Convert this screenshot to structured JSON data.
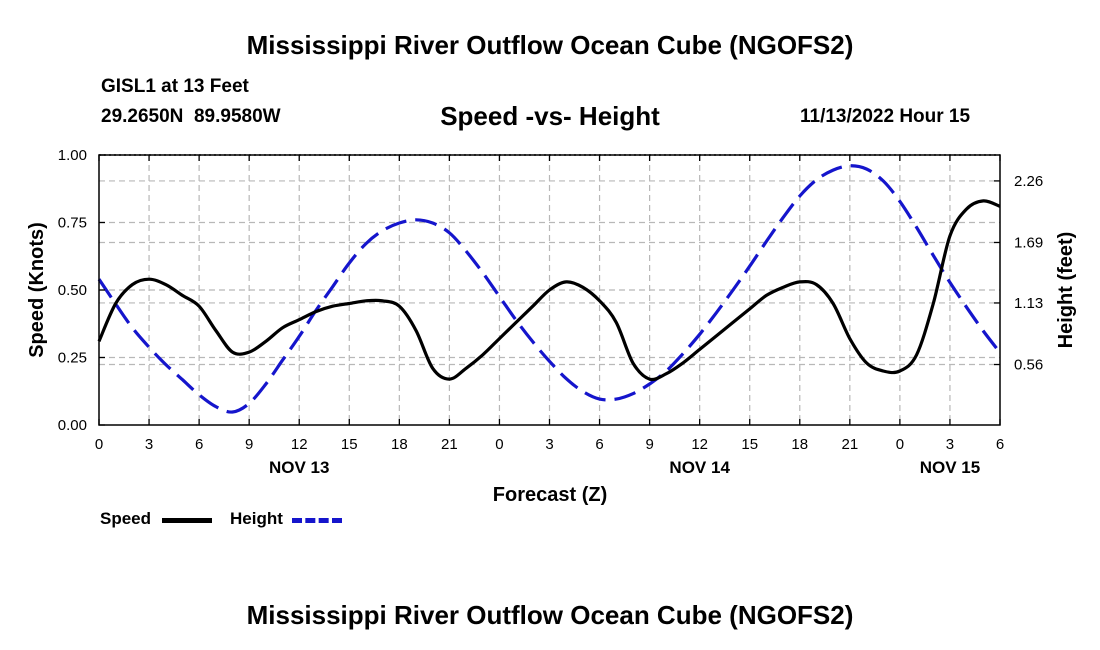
{
  "page_title": "Mississippi River Outflow Ocean Cube (NGOFS2)",
  "station": {
    "name": "GISL1 at 13 Feet",
    "coords": "29.2650N  89.9580W"
  },
  "run_time": "11/13/2022 Hour 15",
  "footer_title": "Mississippi River Outflow Ocean Cube (NGOFS2)",
  "legend": [
    {
      "label": "Speed",
      "color": "#000000"
    },
    {
      "label": "Height",
      "color": "#1515cc"
    }
  ],
  "chart_data": {
    "type": "line",
    "title": "Speed -vs- Height",
    "xlabel": "Forecast (Z)",
    "ylabel": "Speed (Knots)",
    "y2label": "Height (feet)",
    "x_unit": "forecast hour from 0Z Nov 13",
    "xlim": [
      0,
      54
    ],
    "ylim": [
      0,
      1.0
    ],
    "y2lim": [
      0,
      2.5
    ],
    "x_ticks": [
      0,
      3,
      6,
      9,
      12,
      15,
      18,
      21,
      24,
      27,
      30,
      33,
      36,
      39,
      42,
      45,
      48,
      51,
      54
    ],
    "x_tick_labels": [
      "0",
      "3",
      "6",
      "9",
      "12",
      "15",
      "18",
      "21",
      "0",
      "3",
      "6",
      "9",
      "12",
      "15",
      "18",
      "21",
      "0",
      "3",
      "6"
    ],
    "y_ticks": [
      0,
      0.25,
      0.5,
      0.75,
      1.0
    ],
    "y_tick_labels": [
      "0.00",
      "0.25",
      "0.50",
      "0.75",
      "1.00"
    ],
    "y2_ticks": [
      0.56,
      1.13,
      1.69,
      2.26
    ],
    "y2_tick_labels": [
      "0.56",
      "1.13",
      "1.69",
      "2.26"
    ],
    "day_labels": [
      {
        "x": 12,
        "label": "NOV 13"
      },
      {
        "x": 36,
        "label": "NOV 14"
      },
      {
        "x": 51,
        "label": "NOV 15"
      }
    ],
    "series": [
      {
        "name": "Speed",
        "axis": "left",
        "color": "#000000",
        "dash": "solid",
        "x": [
          0,
          1,
          2,
          3,
          4,
          5,
          6,
          7,
          8,
          9,
          10,
          11,
          12,
          13,
          14,
          15,
          16,
          17,
          18,
          19,
          20,
          21,
          22,
          23,
          24,
          25,
          26,
          27,
          28,
          29,
          30,
          31,
          32,
          33,
          34,
          35,
          36,
          37,
          38,
          39,
          40,
          41,
          42,
          43,
          44,
          45,
          46,
          47,
          48,
          49,
          50,
          51,
          52,
          53,
          54
        ],
        "values": [
          0.31,
          0.45,
          0.52,
          0.54,
          0.52,
          0.48,
          0.44,
          0.35,
          0.27,
          0.27,
          0.31,
          0.36,
          0.39,
          0.42,
          0.44,
          0.45,
          0.46,
          0.46,
          0.44,
          0.35,
          0.21,
          0.17,
          0.21,
          0.26,
          0.32,
          0.38,
          0.44,
          0.5,
          0.53,
          0.51,
          0.46,
          0.38,
          0.23,
          0.17,
          0.19,
          0.23,
          0.28,
          0.33,
          0.38,
          0.43,
          0.48,
          0.51,
          0.53,
          0.52,
          0.45,
          0.32,
          0.23,
          0.2,
          0.2,
          0.26,
          0.45,
          0.7,
          0.8,
          0.83,
          0.81
        ]
      },
      {
        "name": "Height",
        "axis": "right",
        "color": "#1515cc",
        "dash": "dashed",
        "x": [
          0,
          1,
          2,
          3,
          4,
          5,
          6,
          7,
          8,
          9,
          10,
          11,
          12,
          13,
          14,
          15,
          16,
          17,
          18,
          19,
          20,
          21,
          22,
          23,
          24,
          25,
          26,
          27,
          28,
          29,
          30,
          31,
          32,
          33,
          34,
          35,
          36,
          37,
          38,
          39,
          40,
          41,
          42,
          43,
          44,
          45,
          46,
          47,
          48,
          49,
          50,
          51,
          52,
          53,
          54
        ],
        "values": [
          1.35,
          1.12,
          0.9,
          0.72,
          0.56,
          0.42,
          0.28,
          0.17,
          0.12,
          0.2,
          0.38,
          0.6,
          0.82,
          1.06,
          1.28,
          1.5,
          1.68,
          1.8,
          1.87,
          1.9,
          1.87,
          1.78,
          1.61,
          1.41,
          1.19,
          0.97,
          0.77,
          0.59,
          0.43,
          0.31,
          0.24,
          0.24,
          0.29,
          0.38,
          0.5,
          0.66,
          0.84,
          1.04,
          1.25,
          1.47,
          1.7,
          1.92,
          2.12,
          2.27,
          2.36,
          2.4,
          2.37,
          2.26,
          2.07,
          1.83,
          1.57,
          1.32,
          1.09,
          0.87,
          0.67
        ]
      }
    ],
    "grid": true
  }
}
